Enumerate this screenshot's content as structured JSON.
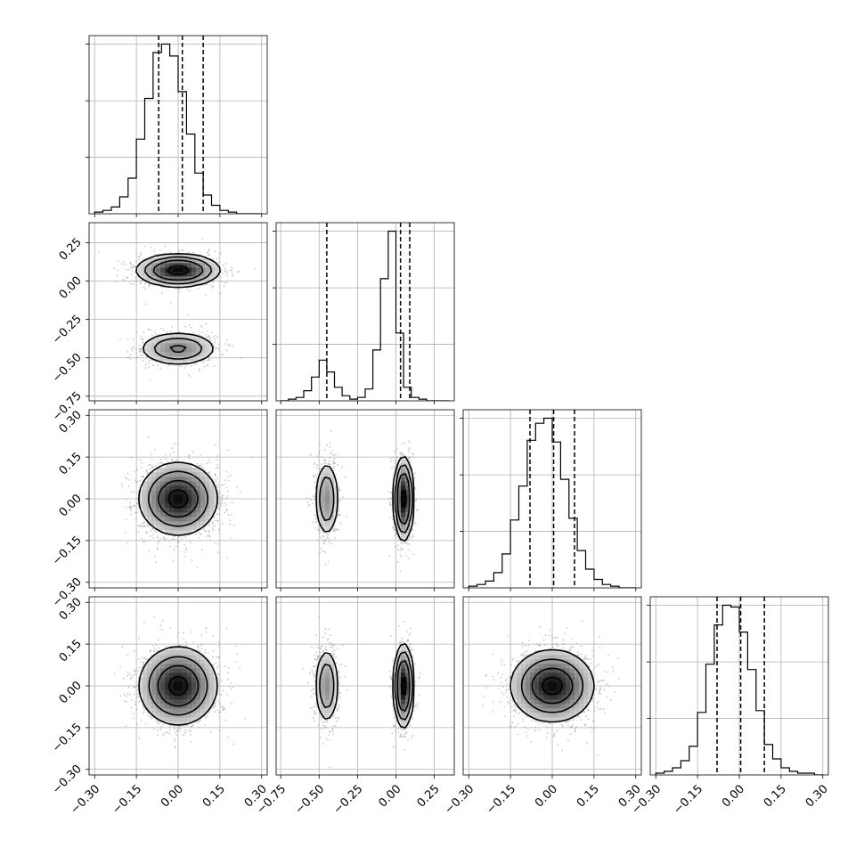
{
  "chart_data": {
    "type": "corner",
    "title": "",
    "n_params": 4,
    "param_ranges": [
      [
        -0.32,
        0.32
      ],
      [
        -0.78,
        0.38
      ],
      [
        -0.32,
        0.32
      ],
      [
        -0.32,
        0.32
      ]
    ],
    "ticks": [
      [
        "-0.30",
        "-0.15",
        "0.00",
        "0.15",
        "0.30"
      ],
      [
        "-0.75",
        "-0.50",
        "-0.25",
        "0.00",
        "0.25"
      ],
      [
        "-0.30",
        "-0.15",
        "0.00",
        "0.15",
        "0.30"
      ],
      [
        "-0.30",
        "-0.15",
        "0.00",
        "0.15",
        "0.30"
      ]
    ],
    "grid": true,
    "histograms": [
      {
        "param": 0,
        "bin_start": -0.3,
        "bin_width": 0.03,
        "counts": [
          1,
          2,
          4,
          10,
          21,
          44,
          68,
          95,
          100,
          93,
          72,
          47,
          24,
          11,
          5,
          2,
          1,
          0,
          0,
          0
        ],
        "quantiles": [
          -0.07,
          0.015,
          0.09
        ]
      },
      {
        "param": 1,
        "bin_start": -0.75,
        "bin_width": 0.05,
        "counts": [
          0,
          1,
          2,
          6,
          14,
          24,
          17,
          8,
          3,
          1,
          2,
          7,
          30,
          72,
          100,
          40,
          8,
          2,
          1,
          0,
          0,
          0
        ],
        "quantiles": [
          -0.45,
          0.03,
          0.09
        ]
      },
      {
        "param": 2,
        "bin_start": -0.3,
        "bin_width": 0.03,
        "counts": [
          1,
          2,
          4,
          9,
          20,
          40,
          60,
          87,
          97,
          100,
          86,
          64,
          41,
          22,
          11,
          5,
          2,
          1,
          0,
          0
        ],
        "quantiles": [
          -0.08,
          0.005,
          0.08
        ]
      },
      {
        "param": 3,
        "bin_start": -0.3,
        "bin_width": 0.03,
        "counts": [
          1,
          2,
          4,
          8,
          16,
          35,
          62,
          84,
          95,
          94,
          80,
          59,
          36,
          17,
          9,
          4,
          2,
          1,
          1,
          0
        ],
        "quantiles": [
          -0.08,
          0.005,
          0.09
        ]
      }
    ],
    "joint": [
      {
        "row": 1,
        "col": 0,
        "modes": [
          {
            "mx": 0.0,
            "my": 0.07,
            "sx": 0.07,
            "sy": 0.05,
            "w": 0.65
          },
          {
            "mx": 0.0,
            "my": -0.44,
            "sx": 0.07,
            "sy": 0.055,
            "w": 0.35
          }
        ]
      },
      {
        "row": 2,
        "col": 0,
        "modes": [
          {
            "mx": 0.0,
            "my": 0.0,
            "sx": 0.07,
            "sy": 0.065,
            "w": 1.0
          }
        ]
      },
      {
        "row": 2,
        "col": 1,
        "modes": [
          {
            "mx": -0.45,
            "my": 0.0,
            "sx": 0.04,
            "sy": 0.07,
            "w": 0.35
          },
          {
            "mx": 0.05,
            "my": 0.0,
            "sx": 0.03,
            "sy": 0.07,
            "w": 0.65
          }
        ]
      },
      {
        "row": 3,
        "col": 0,
        "modes": [
          {
            "mx": 0.0,
            "my": 0.0,
            "sx": 0.07,
            "sy": 0.07,
            "w": 1.0
          }
        ]
      },
      {
        "row": 3,
        "col": 1,
        "modes": [
          {
            "mx": -0.45,
            "my": 0.0,
            "sx": 0.04,
            "sy": 0.07,
            "w": 0.35
          },
          {
            "mx": 0.05,
            "my": 0.0,
            "sx": 0.03,
            "sy": 0.07,
            "w": 0.65
          }
        ]
      },
      {
        "row": 3,
        "col": 2,
        "modes": [
          {
            "mx": 0.0,
            "my": 0.0,
            "sx": 0.075,
            "sy": 0.065,
            "w": 1.0
          }
        ]
      }
    ],
    "contour_levels": [
      0.118,
      0.393,
      0.675,
      0.865
    ],
    "colors": {
      "line": "#000000",
      "grid": "#b0b0b0",
      "points": "#9a9a9a",
      "frame": "#000000"
    }
  }
}
